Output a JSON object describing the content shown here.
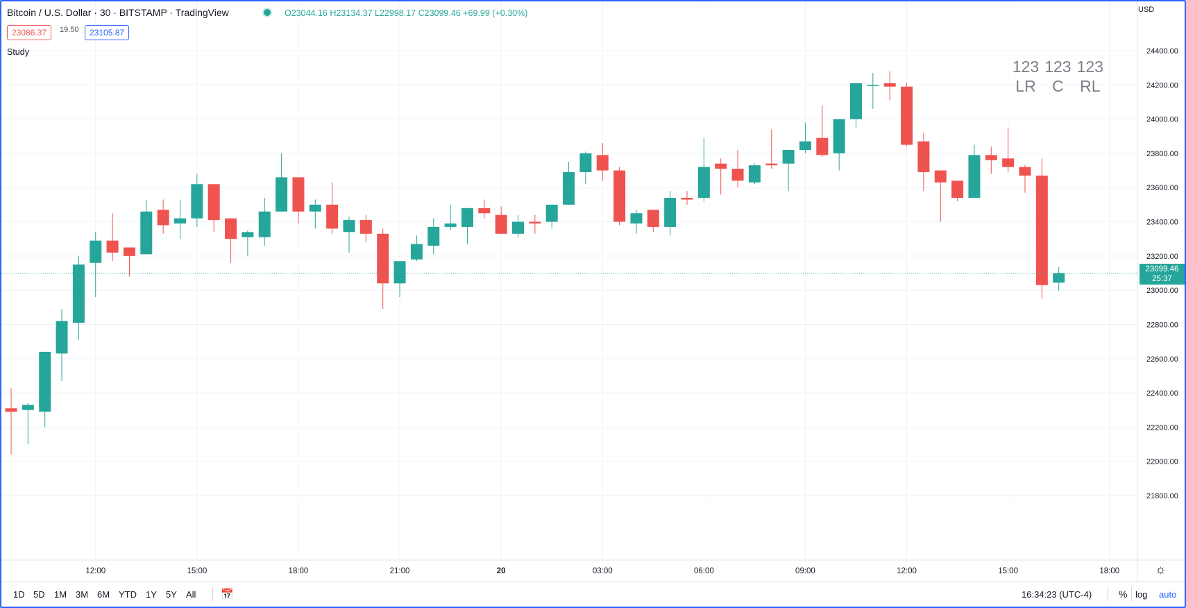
{
  "header": {
    "title": "Bitcoin / U.S. Dollar · 30 · BITSTAMP · TradingView",
    "ohlc": {
      "o_label": "O",
      "o": "23044.16",
      "h_label": "H",
      "h": "23134.37",
      "l_label": "L",
      "l": "22998.17",
      "c_label": "C",
      "c": "23099.46",
      "change": "+69.99 (+0.30%)"
    },
    "bid": "23086.37",
    "spread": "19.50",
    "ask": "23105.87",
    "study_name": "Study",
    "currency": "USD"
  },
  "study_labels": [
    {
      "top": "123",
      "bottom": "LR"
    },
    {
      "top": "123",
      "bottom": "C"
    },
    {
      "top": "123",
      "bottom": "RL"
    }
  ],
  "last_price": {
    "price": "23099.46",
    "countdown": "25:37"
  },
  "bottom_bar": {
    "timeframes": [
      "1D",
      "5D",
      "1M",
      "3M",
      "6M",
      "YTD",
      "1Y",
      "5Y",
      "All"
    ],
    "clock": "16:34:23 (UTC-4)",
    "percent": "%",
    "log": "log",
    "auto": "auto"
  },
  "colors": {
    "up": "#26a69a",
    "down": "#ef5350",
    "accent": "#2962ff",
    "grid": "#f0f3fa"
  },
  "chart_data": {
    "type": "candlestick",
    "interval": "30 minutes",
    "x_ticks": [
      "12:00",
      "15:00",
      "18:00",
      "21:00",
      "20",
      "03:00",
      "06:00",
      "09:00",
      "12:00",
      "15:00",
      "18:00"
    ],
    "x_tick_index": [
      5,
      11,
      17,
      23,
      29,
      35,
      41,
      47,
      53,
      59,
      65
    ],
    "y_ticks": [
      21800,
      22000,
      22200,
      22400,
      22600,
      22800,
      23000,
      23200,
      23400,
      23600,
      23800,
      24000,
      24200,
      24400
    ],
    "ylim": [
      21700,
      24600
    ],
    "candles": [
      {
        "o": 22310,
        "h": 22430,
        "l": 22040,
        "c": 22290
      },
      {
        "o": 22300,
        "h": 22340,
        "l": 22100,
        "c": 22330
      },
      {
        "o": 22290,
        "h": 22640,
        "l": 22200,
        "c": 22640
      },
      {
        "o": 22630,
        "h": 22890,
        "l": 22470,
        "c": 22820
      },
      {
        "o": 22810,
        "h": 23200,
        "l": 22710,
        "c": 23150
      },
      {
        "o": 23160,
        "h": 23340,
        "l": 22960,
        "c": 23290
      },
      {
        "o": 23290,
        "h": 23450,
        "l": 23170,
        "c": 23220
      },
      {
        "o": 23250,
        "h": 23250,
        "l": 23080,
        "c": 23200
      },
      {
        "o": 23210,
        "h": 23530,
        "l": 23210,
        "c": 23460
      },
      {
        "o": 23470,
        "h": 23530,
        "l": 23330,
        "c": 23380
      },
      {
        "o": 23390,
        "h": 23530,
        "l": 23300,
        "c": 23420
      },
      {
        "o": 23420,
        "h": 23680,
        "l": 23370,
        "c": 23620
      },
      {
        "o": 23620,
        "h": 23620,
        "l": 23340,
        "c": 23410
      },
      {
        "o": 23420,
        "h": 23420,
        "l": 23160,
        "c": 23300
      },
      {
        "o": 23310,
        "h": 23350,
        "l": 23200,
        "c": 23340
      },
      {
        "o": 23310,
        "h": 23540,
        "l": 23260,
        "c": 23460
      },
      {
        "o": 23460,
        "h": 23800,
        "l": 23460,
        "c": 23660
      },
      {
        "o": 23660,
        "h": 23660,
        "l": 23390,
        "c": 23460
      },
      {
        "o": 23460,
        "h": 23530,
        "l": 23360,
        "c": 23500
      },
      {
        "o": 23500,
        "h": 23630,
        "l": 23330,
        "c": 23360
      },
      {
        "o": 23340,
        "h": 23430,
        "l": 23220,
        "c": 23410
      },
      {
        "o": 23410,
        "h": 23440,
        "l": 23280,
        "c": 23330
      },
      {
        "o": 23330,
        "h": 23360,
        "l": 22890,
        "c": 23040
      },
      {
        "o": 23040,
        "h": 23170,
        "l": 22960,
        "c": 23170
      },
      {
        "o": 23180,
        "h": 23320,
        "l": 23170,
        "c": 23270
      },
      {
        "o": 23260,
        "h": 23420,
        "l": 23210,
        "c": 23370
      },
      {
        "o": 23370,
        "h": 23500,
        "l": 23350,
        "c": 23390
      },
      {
        "o": 23370,
        "h": 23480,
        "l": 23270,
        "c": 23480
      },
      {
        "o": 23480,
        "h": 23530,
        "l": 23420,
        "c": 23450
      },
      {
        "o": 23440,
        "h": 23490,
        "l": 23330,
        "c": 23330
      },
      {
        "o": 23330,
        "h": 23440,
        "l": 23310,
        "c": 23400
      },
      {
        "o": 23400,
        "h": 23440,
        "l": 23330,
        "c": 23390
      },
      {
        "o": 23400,
        "h": 23500,
        "l": 23360,
        "c": 23500
      },
      {
        "o": 23500,
        "h": 23750,
        "l": 23500,
        "c": 23690
      },
      {
        "o": 23690,
        "h": 23810,
        "l": 23620,
        "c": 23800
      },
      {
        "o": 23790,
        "h": 23860,
        "l": 23640,
        "c": 23700
      },
      {
        "o": 23700,
        "h": 23720,
        "l": 23380,
        "c": 23400
      },
      {
        "o": 23390,
        "h": 23470,
        "l": 23330,
        "c": 23450
      },
      {
        "o": 23470,
        "h": 23470,
        "l": 23340,
        "c": 23370
      },
      {
        "o": 23370,
        "h": 23580,
        "l": 23320,
        "c": 23540
      },
      {
        "o": 23540,
        "h": 23580,
        "l": 23500,
        "c": 23530
      },
      {
        "o": 23540,
        "h": 23890,
        "l": 23520,
        "c": 23720
      },
      {
        "o": 23740,
        "h": 23770,
        "l": 23560,
        "c": 23710
      },
      {
        "o": 23710,
        "h": 23820,
        "l": 23600,
        "c": 23640
      },
      {
        "o": 23630,
        "h": 23740,
        "l": 23620,
        "c": 23730
      },
      {
        "o": 23740,
        "h": 23940,
        "l": 23710,
        "c": 23730
      },
      {
        "o": 23740,
        "h": 23820,
        "l": 23580,
        "c": 23820
      },
      {
        "o": 23820,
        "h": 23980,
        "l": 23800,
        "c": 23870
      },
      {
        "o": 23890,
        "h": 24080,
        "l": 23780,
        "c": 23790
      },
      {
        "o": 23800,
        "h": 24000,
        "l": 23700,
        "c": 24000
      },
      {
        "o": 24000,
        "h": 24210,
        "l": 23950,
        "c": 24210
      },
      {
        "o": 24200,
        "h": 24270,
        "l": 24060,
        "c": 24200
      },
      {
        "o": 24210,
        "h": 24280,
        "l": 24110,
        "c": 24190
      },
      {
        "o": 24190,
        "h": 24210,
        "l": 23840,
        "c": 23850
      },
      {
        "o": 23870,
        "h": 23920,
        "l": 23580,
        "c": 23690
      },
      {
        "o": 23700,
        "h": 23700,
        "l": 23400,
        "c": 23630
      },
      {
        "o": 23640,
        "h": 23640,
        "l": 23520,
        "c": 23540
      },
      {
        "o": 23540,
        "h": 23850,
        "l": 23540,
        "c": 23790
      },
      {
        "o": 23790,
        "h": 23840,
        "l": 23680,
        "c": 23760
      },
      {
        "o": 23770,
        "h": 23950,
        "l": 23690,
        "c": 23720
      },
      {
        "o": 23720,
        "h": 23730,
        "l": 23570,
        "c": 23670
      },
      {
        "o": 23670,
        "h": 23770,
        "l": 22950,
        "c": 23030
      },
      {
        "o": 23044.16,
        "h": 23134.37,
        "l": 22998.17,
        "c": 23099.46
      }
    ]
  }
}
